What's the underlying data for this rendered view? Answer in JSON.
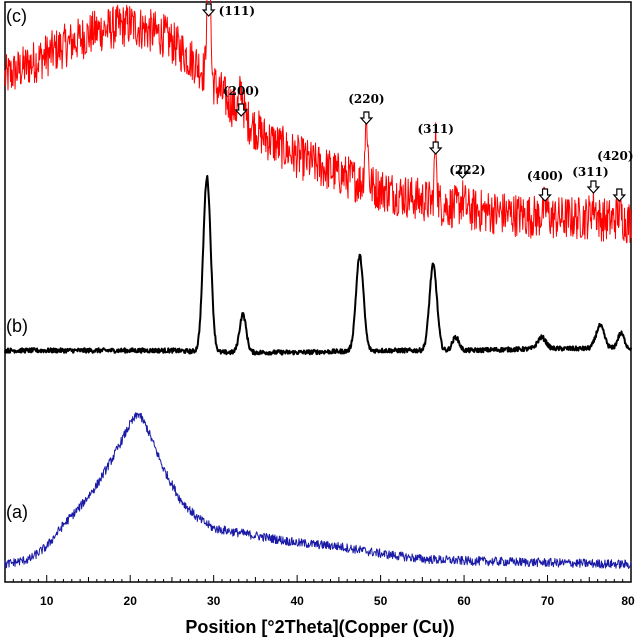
{
  "chart_data": {
    "type": "line",
    "title": "",
    "xlabel": "Position [°2Theta](Copper (Cu))",
    "ylabel": "",
    "xlim": [
      5,
      80
    ],
    "x_ticks": [
      10,
      20,
      30,
      40,
      50,
      60,
      70,
      80
    ],
    "grid": false,
    "series": [
      {
        "name": "(c)",
        "color": "#ff0000",
        "noise": 0.1,
        "points": [
          [
            5,
            0.74
          ],
          [
            8,
            0.8
          ],
          [
            12,
            0.88
          ],
          [
            16,
            0.95
          ],
          [
            20,
            0.98
          ],
          [
            24,
            0.93
          ],
          [
            28,
            0.8
          ],
          [
            32,
            0.62
          ],
          [
            36,
            0.47
          ],
          [
            40,
            0.38
          ],
          [
            45,
            0.3
          ],
          [
            50,
            0.23
          ],
          [
            55,
            0.18
          ],
          [
            60,
            0.14
          ],
          [
            65,
            0.12
          ],
          [
            70,
            0.1
          ],
          [
            75,
            0.1
          ],
          [
            80,
            0.08
          ]
        ],
        "peaks": [
          [
            29.4,
            0.78,
            0.18
          ],
          [
            33.3,
            0.1,
            0.25
          ],
          [
            48.3,
            0.3,
            0.18
          ],
          [
            56.6,
            0.28,
            0.15
          ],
          [
            59.8,
            0.04,
            0.3
          ],
          [
            69.7,
            0.05,
            0.3
          ],
          [
            75.5,
            0.06,
            0.3
          ],
          [
            78.6,
            0.04,
            0.3
          ]
        ]
      },
      {
        "name": "(b)",
        "color": "#000000",
        "noise": 0.012,
        "points": [
          [
            5,
            0.05
          ],
          [
            15,
            0.05
          ],
          [
            20,
            0.05
          ],
          [
            25,
            0.05
          ],
          [
            30,
            0.04
          ],
          [
            40,
            0.04
          ],
          [
            50,
            0.05
          ],
          [
            60,
            0.05
          ],
          [
            70,
            0.06
          ],
          [
            80,
            0.06
          ]
        ],
        "peaks": [
          [
            29.2,
            0.92,
            0.45
          ],
          [
            33.5,
            0.2,
            0.4
          ],
          [
            47.5,
            0.5,
            0.45
          ],
          [
            56.3,
            0.45,
            0.45
          ],
          [
            59.0,
            0.07,
            0.4
          ],
          [
            69.3,
            0.06,
            0.5
          ],
          [
            76.3,
            0.12,
            0.5
          ],
          [
            78.8,
            0.08,
            0.4
          ]
        ]
      },
      {
        "name": "(a)",
        "color": "#1a1aa6",
        "noise": 0.025,
        "points": [
          [
            5,
            0.02
          ],
          [
            8,
            0.05
          ],
          [
            10,
            0.12
          ],
          [
            12,
            0.24
          ],
          [
            14,
            0.34
          ],
          [
            16,
            0.46
          ],
          [
            18,
            0.62
          ],
          [
            20,
            0.8
          ],
          [
            21,
            0.86
          ],
          [
            22,
            0.78
          ],
          [
            24,
            0.55
          ],
          [
            26,
            0.38
          ],
          [
            28,
            0.28
          ],
          [
            30,
            0.22
          ],
          [
            35,
            0.18
          ],
          [
            40,
            0.14
          ],
          [
            45,
            0.12
          ],
          [
            50,
            0.08
          ],
          [
            55,
            0.05
          ],
          [
            60,
            0.04
          ],
          [
            70,
            0.03
          ],
          [
            80,
            0.02
          ]
        ],
        "peaks": []
      }
    ],
    "peak_markers": [
      {
        "x": 29.4,
        "label": "(111)"
      },
      {
        "x": 33.3,
        "label": "(200)"
      },
      {
        "x": 48.3,
        "label": "(220)"
      },
      {
        "x": 56.6,
        "label": "(311)"
      },
      {
        "x": 59.8,
        "label": "(222)"
      },
      {
        "x": 69.7,
        "label": "(400)"
      },
      {
        "x": 75.5,
        "label": "(311)"
      },
      {
        "x": 78.6,
        "label": "(420)"
      }
    ]
  }
}
